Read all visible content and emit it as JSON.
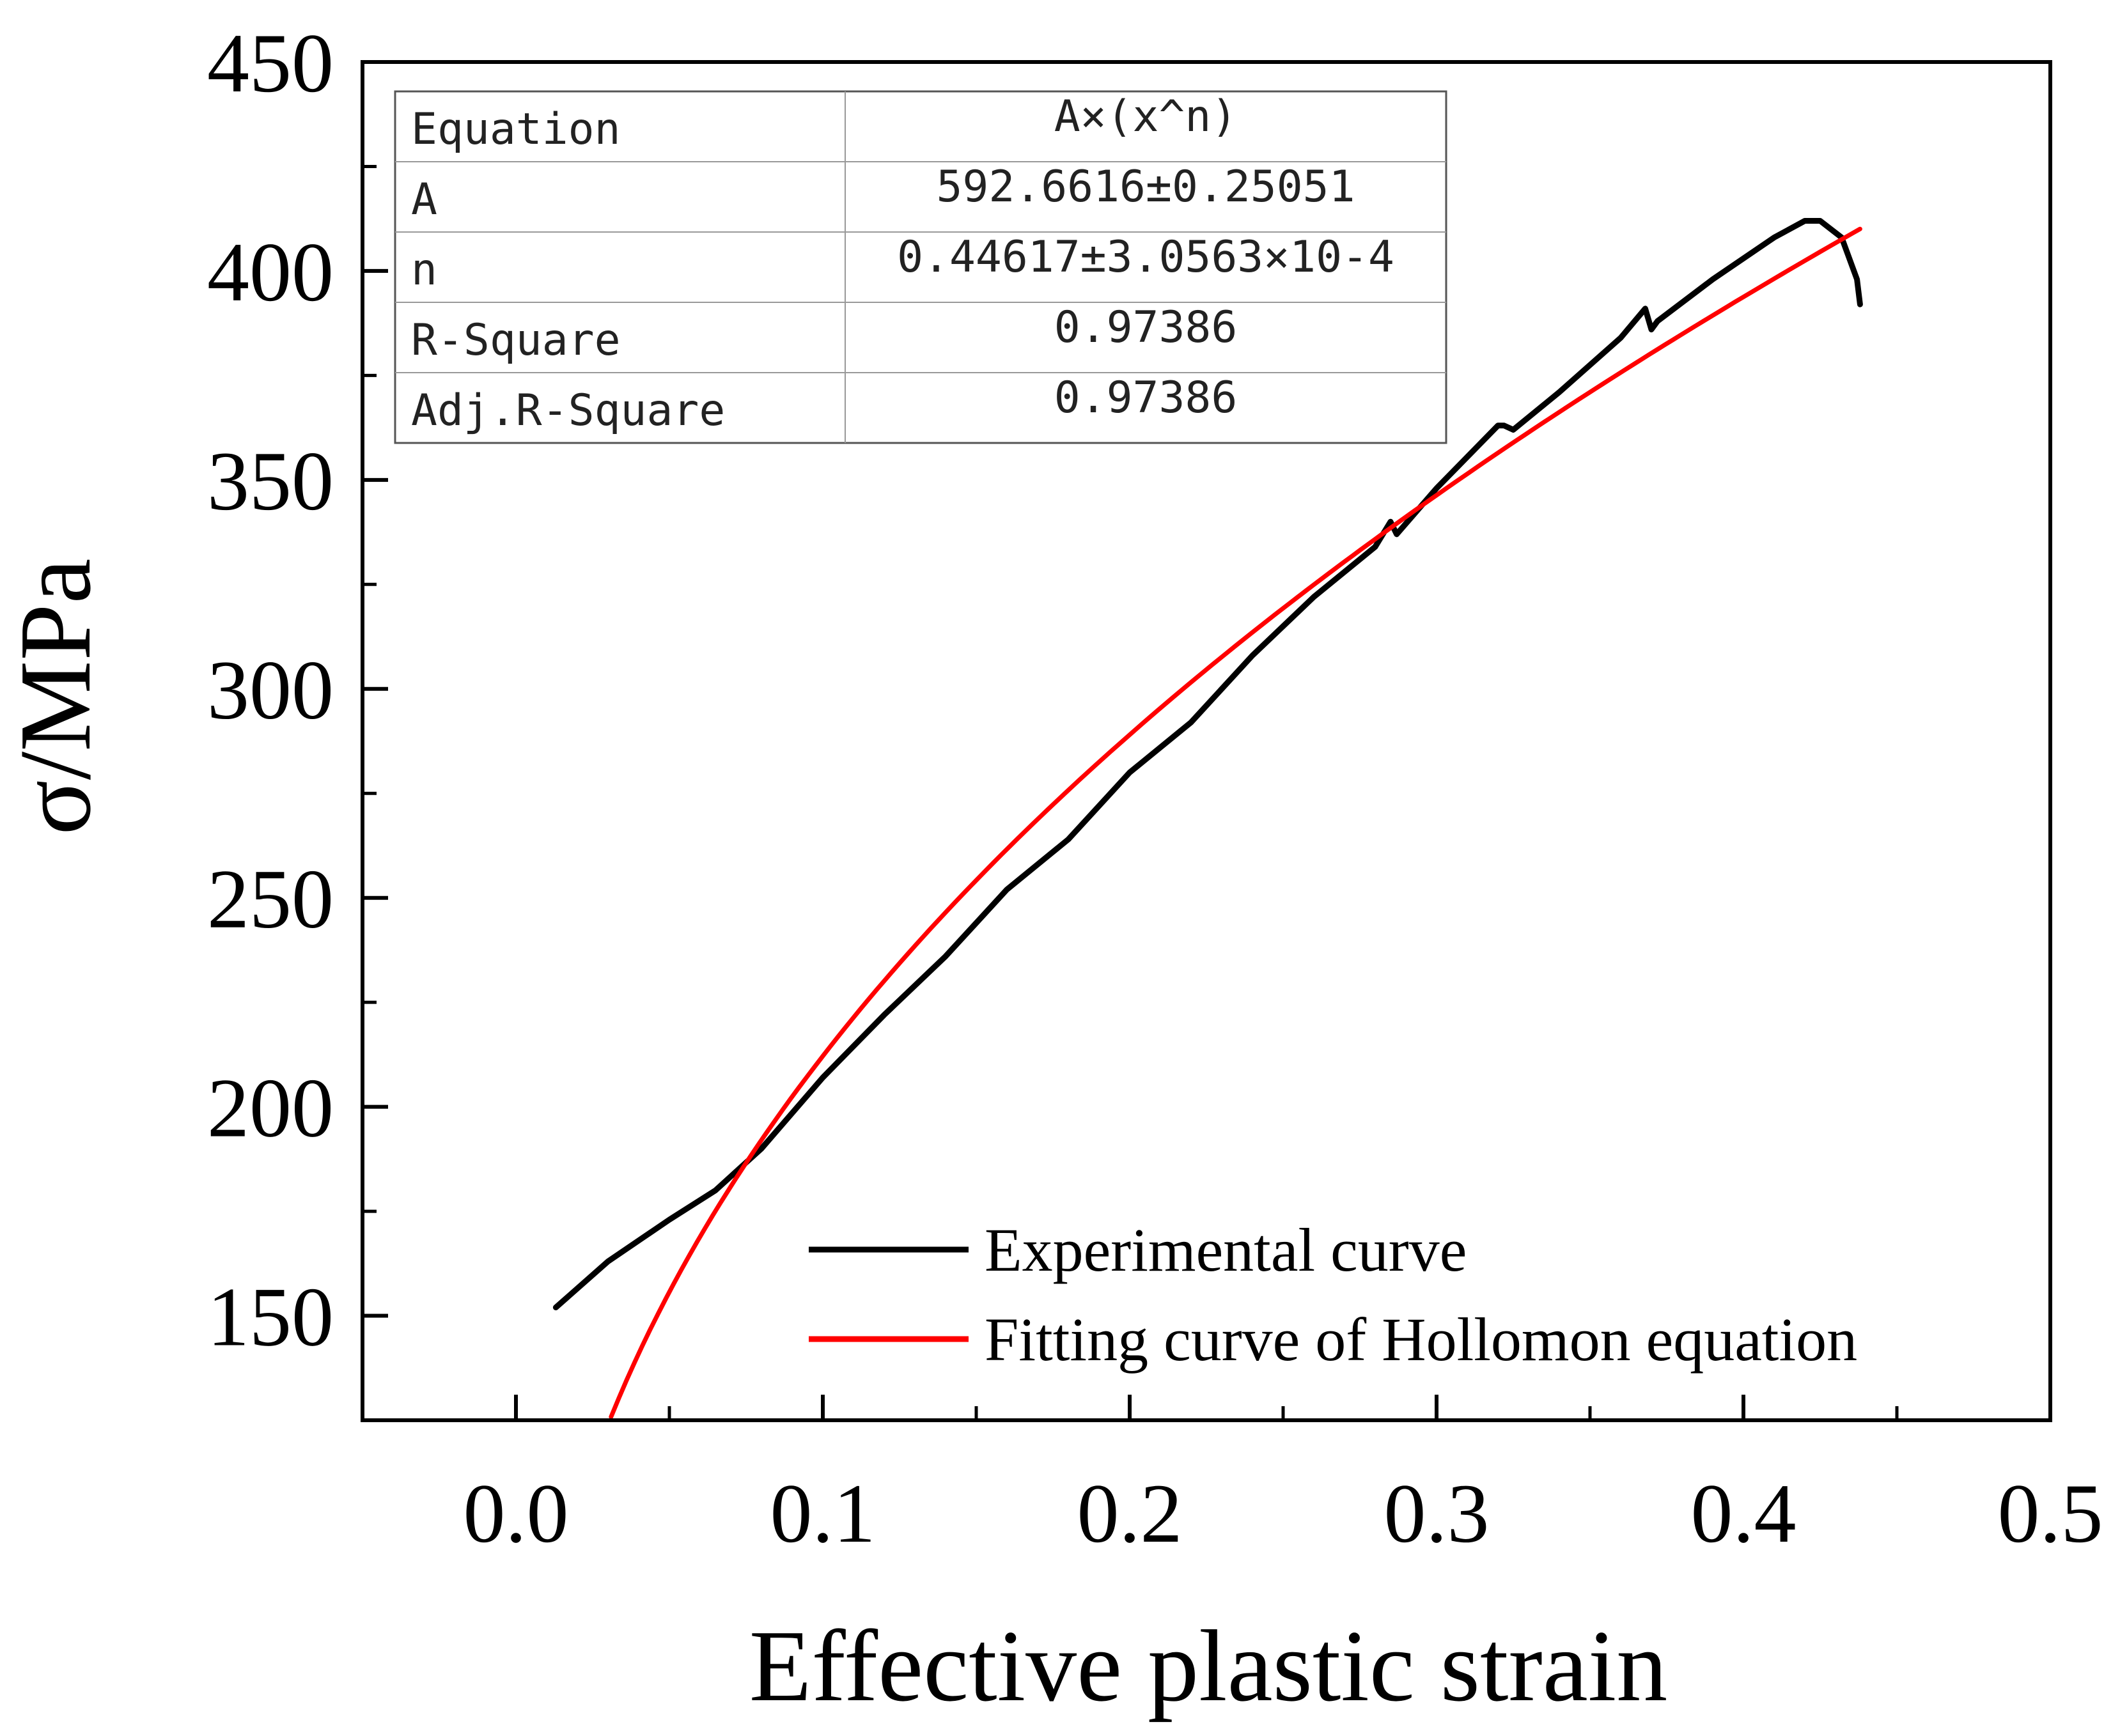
{
  "chart_data": {
    "type": "line",
    "title": "",
    "xlabel": "Effective plastic strain",
    "ylabel": "σ/MPa",
    "xlim": [
      -0.05,
      0.5
    ],
    "ylim": [
      125,
      450
    ],
    "x_ticks": [
      0.0,
      0.1,
      0.2,
      0.3,
      0.4,
      0.5
    ],
    "x_tick_labels": [
      "0.0",
      "0.1",
      "0.2",
      "0.3",
      "0.4",
      "0.5"
    ],
    "y_ticks": [
      150,
      200,
      250,
      300,
      350,
      400,
      450
    ],
    "y_tick_labels": [
      "150",
      "200",
      "250",
      "300",
      "350",
      "400",
      "450"
    ],
    "grid": false,
    "legend_position": "bottom-right",
    "series": [
      {
        "name": "Experimental curve",
        "color": "#000000",
        "x": [
          0.013,
          0.03,
          0.05,
          0.065,
          0.08,
          0.1,
          0.12,
          0.14,
          0.16,
          0.18,
          0.2,
          0.22,
          0.24,
          0.26,
          0.28,
          0.285,
          0.287,
          0.3,
          0.32,
          0.322,
          0.325,
          0.34,
          0.36,
          0.368,
          0.37,
          0.372,
          0.39,
          0.41,
          0.42,
          0.425,
          0.432,
          0.437,
          0.438
        ],
        "y": [
          152,
          163,
          173,
          180,
          190,
          207,
          222,
          236,
          252,
          264,
          280,
          292,
          308,
          322,
          334,
          340,
          337,
          348,
          363,
          363,
          362,
          371,
          384,
          391,
          386,
          388,
          398,
          408,
          412,
          412,
          408,
          398,
          392
        ]
      },
      {
        "name": "Fitting curve of Hollomon equation",
        "color": "#ff0000",
        "function": "A*x^n",
        "params": {
          "A": 592.6616,
          "n": 0.44617
        },
        "x_range": [
          0.031,
          0.438
        ]
      }
    ],
    "legend": [
      {
        "label": "Experimental curve",
        "color": "#000000"
      },
      {
        "label": "Fitting curve of Hollomon equation",
        "color": "#ff0000"
      }
    ],
    "fit_table": {
      "rows": [
        {
          "label": "Equation",
          "value": "A×(x^n)"
        },
        {
          "label": "A",
          "value": "592.6616±0.25051"
        },
        {
          "label": "n",
          "value": "0.44617±3.0563×10-4"
        },
        {
          "label": "R-Square",
          "value": "0.97386"
        },
        {
          "label": "Adj.R-Square",
          "value": "0.97386"
        }
      ]
    }
  }
}
